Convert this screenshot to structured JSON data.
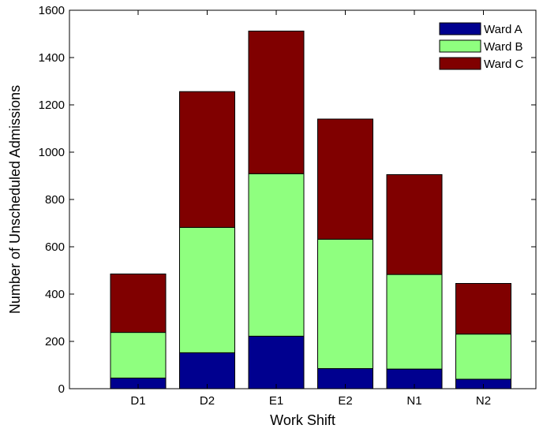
{
  "chart_data": {
    "type": "bar",
    "stacked": true,
    "title": "",
    "xlabel": "Work Shift",
    "ylabel": "Number of Unscheduled Admissions",
    "categories": [
      "D1",
      "D2",
      "E1",
      "E2",
      "N1",
      "N2"
    ],
    "ylim": [
      0,
      1600
    ],
    "yticks": [
      0,
      200,
      400,
      600,
      800,
      1000,
      1200,
      1400,
      1600
    ],
    "ytick_labels": [
      "0",
      "200",
      "400",
      "600",
      "800",
      "1000",
      "1200",
      "1400",
      "1600"
    ],
    "grid": false,
    "legend_position": "top-right",
    "series": [
      {
        "name": "Ward A",
        "color": "#00008f",
        "values": [
          45,
          152,
          222,
          85,
          83,
          40
        ]
      },
      {
        "name": "Ward B",
        "color": "#8fff7f",
        "values": [
          193,
          530,
          687,
          547,
          400,
          191
        ]
      },
      {
        "name": "Ward C",
        "color": "#800000",
        "values": [
          247,
          574,
          603,
          508,
          422,
          214
        ]
      }
    ]
  }
}
